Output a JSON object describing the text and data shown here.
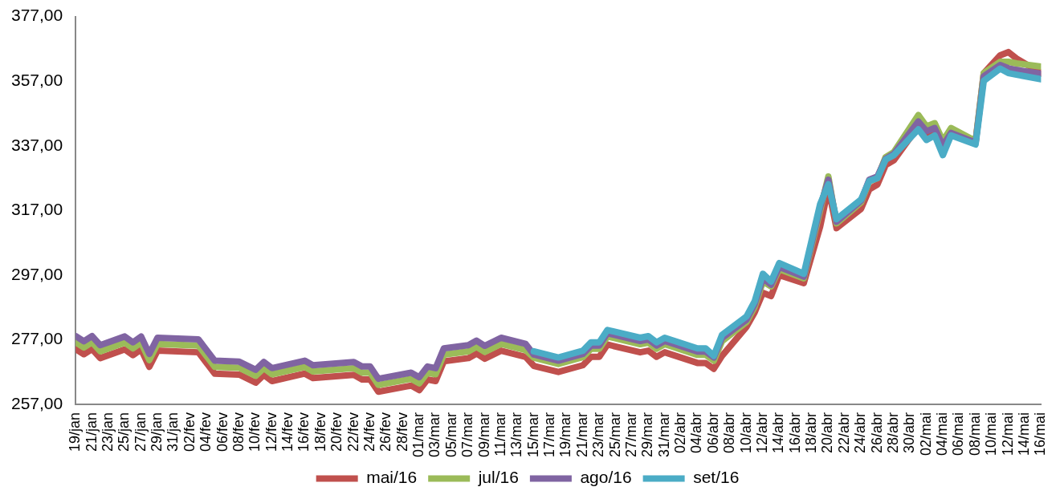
{
  "chart_data": {
    "type": "line",
    "legend": "bottom",
    "grid": false,
    "marker": "none",
    "line_style": "solid",
    "xlim": [
      "--01-19",
      "--05-16"
    ],
    "ylim": [
      257,
      377
    ],
    "yticks": [
      {
        "value": 257,
        "label": "257,00"
      },
      {
        "value": 277,
        "label": "277,00"
      },
      {
        "value": 297,
        "label": "297,00"
      },
      {
        "value": 317,
        "label": "317,00"
      },
      {
        "value": 337,
        "label": "337,00"
      },
      {
        "value": 357,
        "label": "357,00"
      },
      {
        "value": 377,
        "label": "377,00"
      }
    ],
    "xticks": [
      {
        "value": "--01-19",
        "label": "19/jan"
      },
      {
        "value": "--01-21",
        "label": "21/jan"
      },
      {
        "value": "--01-23",
        "label": "23/jan"
      },
      {
        "value": "--01-25",
        "label": "25/jan"
      },
      {
        "value": "--01-27",
        "label": "27/jan"
      },
      {
        "value": "--01-29",
        "label": "29/jan"
      },
      {
        "value": "--01-31",
        "label": "31/jan"
      },
      {
        "value": "--02-02",
        "label": "02/fev"
      },
      {
        "value": "--02-04",
        "label": "04/fev"
      },
      {
        "value": "--02-06",
        "label": "06/fev"
      },
      {
        "value": "--02-08",
        "label": "08/fev"
      },
      {
        "value": "--02-10",
        "label": "10/fev"
      },
      {
        "value": "--02-12",
        "label": "12/fev"
      },
      {
        "value": "--02-14",
        "label": "14/fev"
      },
      {
        "value": "--02-16",
        "label": "16/fev"
      },
      {
        "value": "--02-18",
        "label": "18/fev"
      },
      {
        "value": "--02-20",
        "label": "20/fev"
      },
      {
        "value": "--02-22",
        "label": "22/fev"
      },
      {
        "value": "--02-24",
        "label": "24/fev"
      },
      {
        "value": "--02-26",
        "label": "26/fev"
      },
      {
        "value": "--02-28",
        "label": "28/fev"
      },
      {
        "value": "--03-01",
        "label": "01/mar"
      },
      {
        "value": "--03-03",
        "label": "03/mar"
      },
      {
        "value": "--03-05",
        "label": "05/mar"
      },
      {
        "value": "--03-07",
        "label": "07/mar"
      },
      {
        "value": "--03-09",
        "label": "09/mar"
      },
      {
        "value": "--03-11",
        "label": "11/mar"
      },
      {
        "value": "--03-13",
        "label": "13/mar"
      },
      {
        "value": "--03-15",
        "label": "15/mar"
      },
      {
        "value": "--03-17",
        "label": "17/mar"
      },
      {
        "value": "--03-19",
        "label": "19/mar"
      },
      {
        "value": "--03-21",
        "label": "21/mar"
      },
      {
        "value": "--03-23",
        "label": "23/mar"
      },
      {
        "value": "--03-25",
        "label": "25/mar"
      },
      {
        "value": "--03-27",
        "label": "27/mar"
      },
      {
        "value": "--03-29",
        "label": "29/mar"
      },
      {
        "value": "--03-31",
        "label": "31/mar"
      },
      {
        "value": "--04-02",
        "label": "02/abr"
      },
      {
        "value": "--04-04",
        "label": "04/abr"
      },
      {
        "value": "--04-06",
        "label": "06/abr"
      },
      {
        "value": "--04-08",
        "label": "08/abr"
      },
      {
        "value": "--04-10",
        "label": "10/abr"
      },
      {
        "value": "--04-12",
        "label": "12/abr"
      },
      {
        "value": "--04-14",
        "label": "14/abr"
      },
      {
        "value": "--04-16",
        "label": "16/abr"
      },
      {
        "value": "--04-18",
        "label": "18/abr"
      },
      {
        "value": "--04-20",
        "label": "20/abr"
      },
      {
        "value": "--04-22",
        "label": "22/abr"
      },
      {
        "value": "--04-24",
        "label": "24/abr"
      },
      {
        "value": "--04-26",
        "label": "26/abr"
      },
      {
        "value": "--04-28",
        "label": "28/abr"
      },
      {
        "value": "--04-30",
        "label": "30/abr"
      },
      {
        "value": "--05-02",
        "label": "02/mai"
      },
      {
        "value": "--05-04",
        "label": "04/mai"
      },
      {
        "value": "--05-06",
        "label": "06/mai"
      },
      {
        "value": "--05-08",
        "label": "08/mai"
      },
      {
        "value": "--05-10",
        "label": "10/mai"
      },
      {
        "value": "--05-12",
        "label": "12/mai"
      },
      {
        "value": "--05-14",
        "label": "14/mai"
      },
      {
        "value": "--05-16",
        "label": "16/mai"
      }
    ],
    "x": [
      "--01-19",
      "--01-20",
      "--01-21",
      "--01-22",
      "--01-25",
      "--01-26",
      "--01-27",
      "--01-28",
      "--01-29",
      "--02-03",
      "--02-05",
      "--02-08",
      "--02-10",
      "--02-11",
      "--02-12",
      "--02-16",
      "--02-17",
      "--02-22",
      "--02-23",
      "--02-24",
      "--02-25",
      "--02-29",
      "--03-01",
      "--03-02",
      "--03-03",
      "--03-04",
      "--03-07",
      "--03-08",
      "--03-09",
      "--03-11",
      "--03-14",
      "--03-15",
      "--03-18",
      "--03-21",
      "--03-22",
      "--03-23",
      "--03-24",
      "--03-28",
      "--03-29",
      "--03-30",
      "--03-31",
      "--04-04",
      "--04-05",
      "--04-06",
      "--04-07",
      "--04-10",
      "--04-11",
      "--04-12",
      "--04-13",
      "--04-14",
      "--04-17",
      "--04-19",
      "--04-20",
      "--04-21",
      "--04-24",
      "--04-25",
      "--04-26",
      "--04-27",
      "--04-28",
      "--05-01",
      "--05-02",
      "--05-03",
      "--05-04",
      "--05-05",
      "--05-08",
      "--05-09",
      "--05-11",
      "--05-12",
      "--05-13",
      "--05-16"
    ],
    "series": [
      {
        "name": "mai/16",
        "color": "#c0504d",
        "values": [
          274.1,
          272.5,
          274.1,
          271.3,
          274.0,
          272.2,
          274.0,
          268.6,
          273.6,
          273.1,
          266.5,
          266.2,
          263.7,
          266.1,
          264.2,
          266.5,
          265.1,
          266.1,
          264.7,
          264.7,
          260.9,
          262.8,
          261.4,
          264.7,
          264.2,
          270.3,
          271.3,
          272.7,
          271.1,
          273.6,
          271.7,
          268.9,
          267.0,
          269.1,
          271.7,
          271.7,
          275.5,
          273.1,
          273.6,
          271.7,
          273.1,
          269.8,
          269.8,
          268.0,
          272.0,
          281.0,
          285.5,
          291.5,
          290.5,
          297.0,
          294.5,
          312.0,
          324.0,
          311.5,
          317.5,
          323.5,
          325.0,
          331.0,
          332.5,
          343.0,
          340.5,
          342.0,
          336.0,
          340.5,
          338.0,
          359.5,
          365.0,
          366.0,
          364.0,
          359.5
        ]
      },
      {
        "name": "jul/16",
        "color": "#9bbb59",
        "values": [
          276.2,
          274.6,
          276.2,
          273.4,
          276.1,
          274.3,
          276.1,
          270.7,
          275.7,
          275.2,
          268.6,
          268.3,
          265.8,
          268.2,
          266.3,
          268.6,
          267.2,
          268.2,
          266.8,
          266.8,
          263.0,
          264.9,
          263.5,
          266.8,
          266.3,
          272.4,
          273.4,
          274.8,
          273.2,
          275.7,
          273.8,
          271.4,
          269.5,
          271.6,
          274.2,
          274.2,
          278.0,
          275.6,
          276.1,
          274.2,
          275.6,
          272.3,
          272.3,
          270.5,
          276.5,
          282.5,
          287.2,
          295.0,
          293.5,
          298.8,
          296.0,
          317.0,
          327.5,
          313.0,
          319.5,
          326.0,
          327.0,
          333.5,
          335.0,
          346.5,
          343.0,
          344.0,
          338.5,
          342.5,
          338.5,
          359.5,
          363.0,
          363.0,
          362.5,
          361.5
        ]
      },
      {
        "name": "ago/16",
        "color": "#8064a2",
        "values": [
          278.1,
          276.5,
          278.1,
          275.3,
          278.0,
          276.2,
          278.0,
          272.6,
          277.6,
          277.1,
          270.5,
          270.2,
          267.7,
          270.1,
          268.2,
          270.5,
          269.1,
          270.1,
          268.7,
          268.7,
          264.9,
          266.8,
          265.4,
          268.7,
          268.2,
          274.3,
          275.3,
          276.7,
          275.1,
          277.6,
          275.7,
          272.4,
          270.5,
          272.6,
          275.2,
          275.2,
          279.0,
          276.6,
          277.1,
          275.2,
          276.6,
          273.3,
          273.3,
          271.5,
          277.5,
          283.2,
          288.0,
          296.0,
          294.0,
          299.5,
          296.5,
          318.0,
          326.5,
          313.5,
          320.0,
          326.5,
          327.5,
          333.0,
          334.5,
          344.5,
          341.5,
          342.5,
          337.0,
          341.0,
          338.0,
          358.5,
          362.0,
          361.0,
          360.5,
          359.3
        ]
      },
      {
        "name": "set/16",
        "color": "#4bacc6",
        "values": [
          null,
          null,
          null,
          null,
          null,
          null,
          null,
          null,
          null,
          null,
          null,
          null,
          null,
          null,
          null,
          null,
          null,
          null,
          null,
          null,
          null,
          null,
          null,
          null,
          null,
          null,
          null,
          null,
          null,
          null,
          null,
          273.4,
          271.5,
          273.6,
          276.2,
          276.2,
          280.0,
          277.6,
          278.1,
          276.2,
          277.6,
          274.3,
          274.3,
          272.0,
          278.5,
          284.2,
          288.9,
          297.4,
          295.0,
          300.7,
          297.4,
          319.0,
          325.1,
          314.3,
          320.4,
          326.1,
          327.0,
          332.7,
          334.1,
          342.1,
          338.8,
          340.2,
          334.1,
          340.2,
          337.4,
          357.1,
          360.9,
          359.5,
          359.0,
          357.6
        ]
      }
    ]
  }
}
